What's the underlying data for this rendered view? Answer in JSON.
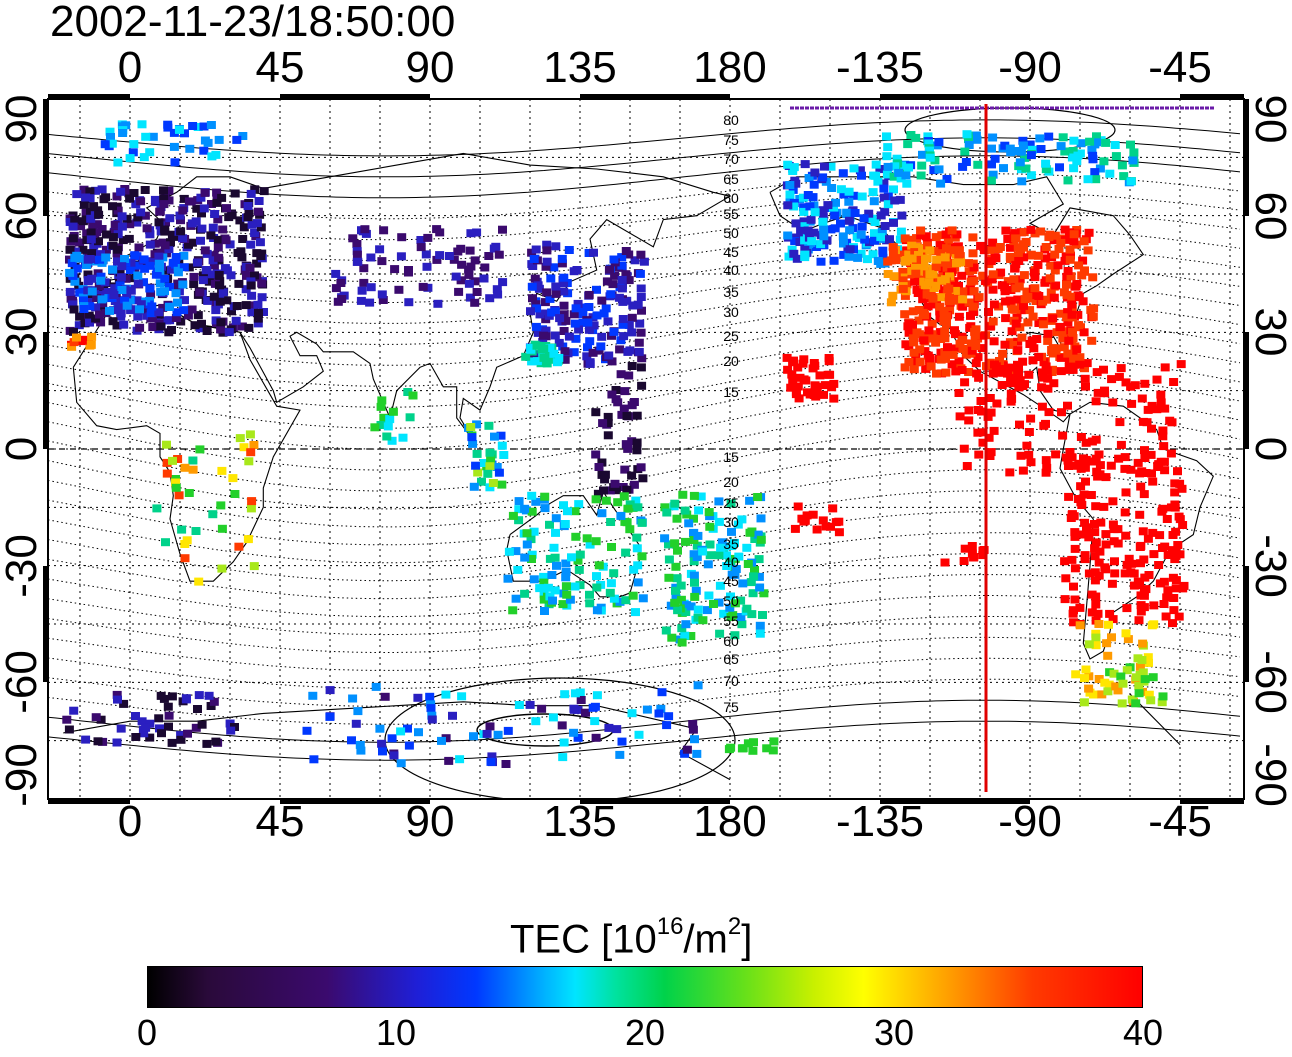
{
  "title": "2002-11-23/18:50:00",
  "map": {
    "lon_ticks": [
      "0",
      "45",
      "90",
      "135",
      "180",
      "-135",
      "-90",
      "-45"
    ],
    "lat_ticks": [
      "90",
      "60",
      "30",
      "0",
      "-30",
      "-60",
      "-90"
    ],
    "contour_labels": [
      "80",
      "75",
      "70",
      "65",
      "60",
      "55",
      "50",
      "45",
      "40",
      "35",
      "30",
      "25",
      "20",
      "15",
      "15",
      "20",
      "25",
      "30",
      "35",
      "40",
      "45",
      "50",
      "55",
      "60",
      "65",
      "70",
      "75"
    ],
    "marker_color": "#e00000"
  },
  "colorbar": {
    "title_text": "TEC  [10",
    "title_exp1": "16",
    "title_mid": "/m",
    "title_exp2": "2",
    "title_end": "]",
    "ticks": [
      "0",
      "10",
      "20",
      "30",
      "40"
    ],
    "colormap": [
      "#000000",
      "#3b0a6e",
      "#0038ff",
      "#00e5ff",
      "#00d24a",
      "#ffff00",
      "#ff0000"
    ]
  }
}
